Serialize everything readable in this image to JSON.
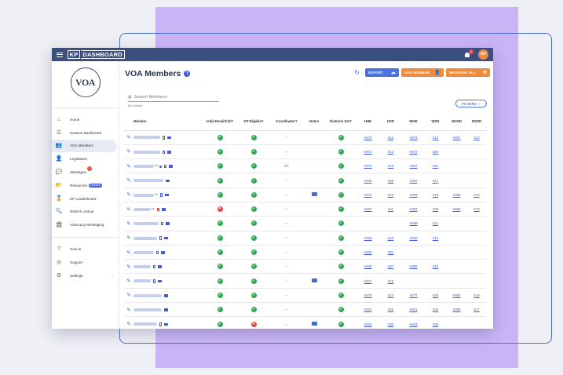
{
  "app": {
    "logo_box": "KP",
    "logo_text": "DASHBOARD",
    "notification_count": "1",
    "avatar_initials": "AP"
  },
  "org_logo": "VOA",
  "sidebar": {
    "items": [
      {
        "label": "Home",
        "icon": "home-icon",
        "glyph": "⌂"
      },
      {
        "label": "Session Dashboard",
        "icon": "list-icon",
        "glyph": "☰"
      },
      {
        "label": "VOA Members",
        "icon": "members-icon",
        "glyph": "👥",
        "active": true
      },
      {
        "label": "Legislators",
        "icon": "legislators-icon",
        "glyph": "👤"
      },
      {
        "label": "Messages",
        "icon": "messages-icon",
        "glyph": "💬",
        "badge": "1"
      },
      {
        "label": "Resources",
        "icon": "folder-icon",
        "glyph": "📂",
        "pill": "Updated"
      },
      {
        "label": "KP Leaderboard",
        "icon": "medal-icon",
        "glyph": "🏅"
      },
      {
        "label": "District Lookup",
        "icon": "search-icon",
        "glyph": "🔍"
      },
      {
        "label": "Advocacy Messaging",
        "icon": "capitol-icon",
        "glyph": "🏛"
      }
    ],
    "bottom_items": [
      {
        "label": "How to",
        "icon": "help-icon",
        "glyph": "?"
      },
      {
        "label": "Support",
        "icon": "support-icon",
        "glyph": "◎"
      },
      {
        "label": "Settings",
        "icon": "settings-icon",
        "glyph": "⚙"
      }
    ]
  },
  "main": {
    "title": "VOA Members",
    "help": "?",
    "buttons": {
      "export": "EXPORT",
      "add_member": "ADD MEMBER",
      "message_all": "MESSAGE ALL"
    },
    "search_placeholder": "Search Members",
    "active_count": "611 Active",
    "filters": "FILTERS"
  },
  "table": {
    "columns": [
      "",
      "Member",
      "Valid Email/Cell?",
      "KP Eligible?",
      "Coordinator?",
      "Notes",
      "Districts Set?",
      "HHD",
      "HSD",
      "WHD",
      "WSD",
      "W2HD",
      "W2SD"
    ],
    "rows": [
      {
        "name_w": 34,
        "kp": false,
        "phone": true,
        "phone_red": false,
        "mail": true,
        "email": "ok",
        "kp_elig": "ok",
        "coord": "–",
        "note": false,
        "districts": "ok",
        "hhd": "H072",
        "hsd": "S12",
        "whd": "H073",
        "wsd": "S12",
        "w2hd": "H057",
        "w2sd": "S10"
      },
      {
        "name_w": 34,
        "kp": false,
        "phone": true,
        "phone_red": false,
        "mail": true,
        "email": "ok",
        "kp_elig": "ok",
        "coord": "–",
        "note": false,
        "districts": "ok",
        "hhd": "H072",
        "hsd": "S12",
        "whd": "H072",
        "wsd": "S05",
        "w2hd": "",
        "w2sd": ""
      },
      {
        "name_w": 26,
        "kp": true,
        "phone": true,
        "phone_red": false,
        "mail": true,
        "email": "ok",
        "kp_elig": "ok",
        "coord": "CT",
        "note": false,
        "districts": "ok",
        "hhd": "H073",
        "hsd": "S12",
        "whd": "H037",
        "wsd": "S11",
        "w2hd": "",
        "w2sd": ""
      },
      {
        "name_w": 38,
        "kp": false,
        "phone": false,
        "phone_red": false,
        "mail": true,
        "email": "ok",
        "kp_elig": "ok",
        "coord": "–",
        "note": false,
        "districts": "ok",
        "hhd": "H033",
        "hsd": "S25",
        "whd": "H037",
        "wsd": "S17",
        "w2hd": "",
        "w2sd": ""
      },
      {
        "name_w": 26,
        "kp": true,
        "phone": true,
        "phone_red": false,
        "mail": true,
        "email": "ok",
        "kp_elig": "ok",
        "coord": "–",
        "note": true,
        "districts": "ok",
        "hhd": "H073",
        "hsd": "S12",
        "whd": "H063",
        "wsd": "S15",
        "w2hd": "H068",
        "w2sd": "S15"
      },
      {
        "name_w": 22,
        "kp": true,
        "phone": true,
        "phone_red": true,
        "mail": true,
        "email": "no",
        "kp_elig": "ok",
        "coord": "–",
        "note": false,
        "districts": "ok",
        "hhd": "H037",
        "hsd": "S11",
        "whd": "H063",
        "wsd": "S05",
        "w2hd": "H068",
        "w2sd": "S15"
      },
      {
        "name_w": 32,
        "kp": false,
        "phone": true,
        "phone_red": false,
        "mail": true,
        "email": "ok",
        "kp_elig": "ok",
        "coord": "–",
        "note": false,
        "districts": "ok",
        "hhd": "",
        "hsd": "",
        "whd": "H068",
        "wsd": "S11",
        "w2hd": "",
        "w2sd": ""
      },
      {
        "name_w": 30,
        "kp": false,
        "phone": true,
        "phone_red": false,
        "mail": true,
        "email": "ok",
        "kp_elig": "ok",
        "coord": "–",
        "note": false,
        "districts": "ok",
        "hhd": "H026",
        "hsd": "S15",
        "whd": "H026",
        "wsd": "S10",
        "w2hd": "",
        "w2sd": ""
      },
      {
        "name_w": 26,
        "kp": false,
        "phone": true,
        "phone_red": false,
        "mail": true,
        "email": "ok",
        "kp_elig": "ok",
        "coord": "–",
        "note": false,
        "districts": "ok",
        "hhd": "H036",
        "hsd": "S01",
        "whd": "",
        "wsd": "",
        "w2hd": "",
        "w2sd": ""
      },
      {
        "name_w": 22,
        "kp": false,
        "phone": true,
        "phone_red": false,
        "mail": true,
        "email": "ok",
        "kp_elig": "ok",
        "coord": "–",
        "note": false,
        "districts": "ok",
        "hhd": "H040",
        "hsd": "S27",
        "whd": "H080",
        "wsd": "S12",
        "w2hd": "",
        "w2sd": ""
      },
      {
        "name_w": 22,
        "kp": false,
        "phone": true,
        "phone_red": false,
        "mail": true,
        "email": "ok",
        "kp_elig": "ok",
        "coord": "–",
        "note": true,
        "districts": "ok",
        "hhd": "H017",
        "hsd": "S15",
        "whd": "",
        "wsd": "",
        "w2hd": "",
        "w2sd": ""
      },
      {
        "name_w": 36,
        "kp": false,
        "phone": false,
        "phone_red": false,
        "mail": true,
        "email": "ok",
        "kp_elig": "ok",
        "coord": "–",
        "note": false,
        "districts": "ok",
        "hhd": "H078",
        "hsd": "S14",
        "whd": "H077",
        "wsd": "S05",
        "w2hd": "H080",
        "w2sd": "S18"
      },
      {
        "name_w": 36,
        "kp": false,
        "phone": false,
        "phone_red": false,
        "mail": true,
        "email": "ok",
        "kp_elig": "ok",
        "coord": "–",
        "note": false,
        "districts": "ok",
        "hhd": "H031",
        "hsd": "S25",
        "whd": "H021",
        "wsd": "S26",
        "w2hd": "H089",
        "w2sd": "S17"
      },
      {
        "name_w": 30,
        "kp": false,
        "phone": true,
        "phone_red": false,
        "mail": true,
        "email": "ok",
        "kp_elig": "no",
        "coord": "–",
        "note": true,
        "districts": "ok",
        "hhd": "H033",
        "hsd": "S33",
        "whd": "H033",
        "wsd": "S33",
        "w2hd": "",
        "w2sd": ""
      }
    ]
  },
  "colors": {
    "topbar": "#3b4f7e",
    "accent_blue": "#4b73e0",
    "accent_orange": "#ef8b3a",
    "ok_green": "#2fa84f",
    "error_red": "#e0443a"
  }
}
